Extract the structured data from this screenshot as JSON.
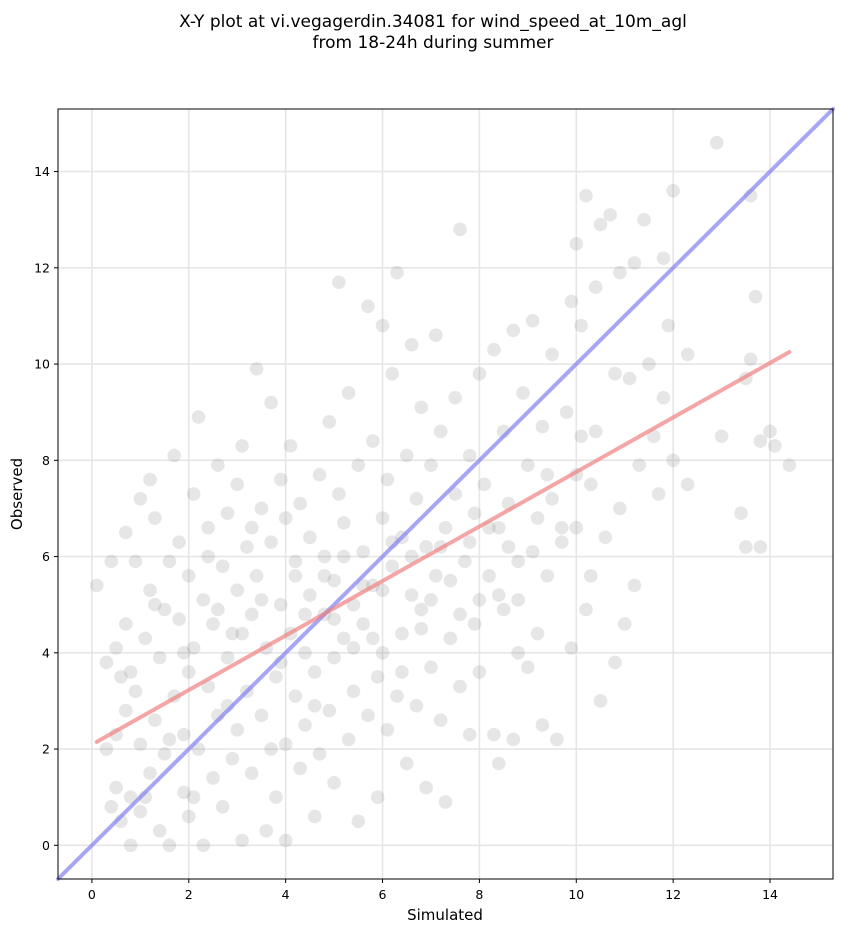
{
  "chart_data": {
    "type": "scatter",
    "title": [
      "X-Y plot at vi.vegagerdin.34081 for wind_speed_at_10m_agl",
      "from 18-24h during summer"
    ],
    "xlabel": "Simulated",
    "ylabel": "Observed",
    "xlim": [
      -0.7,
      15.3
    ],
    "ylim": [
      -0.7,
      15.3
    ],
    "xticks": [
      0,
      2,
      4,
      6,
      8,
      10,
      12,
      14
    ],
    "yticks": [
      0,
      2,
      4,
      6,
      8,
      10,
      12,
      14
    ],
    "xtick_labels": [
      "0",
      "2",
      "4",
      "6",
      "8",
      "10",
      "12",
      "14"
    ],
    "ytick_labels": [
      "0",
      "2",
      "4",
      "6",
      "8",
      "10",
      "12",
      "14"
    ],
    "grid": true,
    "point_color": "#808080",
    "identity_line": {
      "color": "#8080f0",
      "from": [
        -0.7,
        -0.7
      ],
      "to": [
        15.3,
        15.3
      ]
    },
    "regression_line": {
      "color": "#f08080",
      "from": [
        0.1,
        2.15
      ],
      "to": [
        14.4,
        10.25
      ]
    },
    "points": [
      [
        0.1,
        5.4
      ],
      [
        0.3,
        3.8
      ],
      [
        0.4,
        5.9
      ],
      [
        0.4,
        0.8
      ],
      [
        0.5,
        2.3
      ],
      [
        0.5,
        1.2
      ],
      [
        0.6,
        3.5
      ],
      [
        0.6,
        0.5
      ],
      [
        0.7,
        4.6
      ],
      [
        0.7,
        2.8
      ],
      [
        0.7,
        6.5
      ],
      [
        0.8,
        1.0
      ],
      [
        0.8,
        0.0
      ],
      [
        0.9,
        5.9
      ],
      [
        0.9,
        3.2
      ],
      [
        1.0,
        2.1
      ],
      [
        1.0,
        7.2
      ],
      [
        1.0,
        0.7
      ],
      [
        1.1,
        4.3
      ],
      [
        1.2,
        5.3
      ],
      [
        1.2,
        1.5
      ],
      [
        1.2,
        7.6
      ],
      [
        1.3,
        2.6
      ],
      [
        1.3,
        6.8
      ],
      [
        1.4,
        3.9
      ],
      [
        1.4,
        0.3
      ],
      [
        1.5,
        4.9
      ],
      [
        1.5,
        1.9
      ],
      [
        1.6,
        5.9
      ],
      [
        1.6,
        0.0
      ],
      [
        1.7,
        8.1
      ],
      [
        1.7,
        3.1
      ],
      [
        1.8,
        6.3
      ],
      [
        1.8,
        4.7
      ],
      [
        1.9,
        1.1
      ],
      [
        1.9,
        2.3
      ],
      [
        2.0,
        5.6
      ],
      [
        2.0,
        3.6
      ],
      [
        2.0,
        0.6
      ],
      [
        2.1,
        7.3
      ],
      [
        2.1,
        4.1
      ],
      [
        2.2,
        8.9
      ],
      [
        2.2,
        2.0
      ],
      [
        2.3,
        5.1
      ],
      [
        2.3,
        0.0
      ],
      [
        2.4,
        6.6
      ],
      [
        2.4,
        3.3
      ],
      [
        2.5,
        4.6
      ],
      [
        2.5,
        1.4
      ],
      [
        2.6,
        7.9
      ],
      [
        2.6,
        2.7
      ],
      [
        2.7,
        5.8
      ],
      [
        2.7,
        0.8
      ],
      [
        2.8,
        6.9
      ],
      [
        2.8,
        3.9
      ],
      [
        2.9,
        4.4
      ],
      [
        2.9,
        1.8
      ],
      [
        3.0,
        7.5
      ],
      [
        3.0,
        5.3
      ],
      [
        3.0,
        2.4
      ],
      [
        3.1,
        8.3
      ],
      [
        3.1,
        0.1
      ],
      [
        3.2,
        6.2
      ],
      [
        3.2,
        3.2
      ],
      [
        3.3,
        4.8
      ],
      [
        3.3,
        1.5
      ],
      [
        3.4,
        9.9
      ],
      [
        3.4,
        5.6
      ],
      [
        3.5,
        7.0
      ],
      [
        3.5,
        2.7
      ],
      [
        3.6,
        4.1
      ],
      [
        3.6,
        0.3
      ],
      [
        3.7,
        9.2
      ],
      [
        3.7,
        6.3
      ],
      [
        3.8,
        3.5
      ],
      [
        3.8,
        1.0
      ],
      [
        3.9,
        7.6
      ],
      [
        3.9,
        5.0
      ],
      [
        4.0,
        2.1
      ],
      [
        4.0,
        6.8
      ],
      [
        4.0,
        0.1
      ],
      [
        4.1,
        4.4
      ],
      [
        4.1,
        8.3
      ],
      [
        4.2,
        3.1
      ],
      [
        4.2,
        5.6
      ],
      [
        4.3,
        1.6
      ],
      [
        4.3,
        7.1
      ],
      [
        4.4,
        4.0
      ],
      [
        4.4,
        2.5
      ],
      [
        4.5,
        6.4
      ],
      [
        4.5,
        5.2
      ],
      [
        4.6,
        3.6
      ],
      [
        4.6,
        0.6
      ],
      [
        4.7,
        7.7
      ],
      [
        4.7,
        1.9
      ],
      [
        4.8,
        4.8
      ],
      [
        4.8,
        6.0
      ],
      [
        4.9,
        2.8
      ],
      [
        4.9,
        8.8
      ],
      [
        5.0,
        5.5
      ],
      [
        5.0,
        3.9
      ],
      [
        5.0,
        1.3
      ],
      [
        5.1,
        7.3
      ],
      [
        5.1,
        11.7
      ],
      [
        5.2,
        4.3
      ],
      [
        5.2,
        6.7
      ],
      [
        5.3,
        2.2
      ],
      [
        5.3,
        9.4
      ],
      [
        5.4,
        5.0
      ],
      [
        5.4,
        3.2
      ],
      [
        5.5,
        7.9
      ],
      [
        5.5,
        0.5
      ],
      [
        5.6,
        6.1
      ],
      [
        5.6,
        4.6
      ],
      [
        5.7,
        2.7
      ],
      [
        5.7,
        11.2
      ],
      [
        5.8,
        8.4
      ],
      [
        5.8,
        5.4
      ],
      [
        5.9,
        3.5
      ],
      [
        5.9,
        1.0
      ],
      [
        6.0,
        10.8
      ],
      [
        6.0,
        6.8
      ],
      [
        6.0,
        4.0
      ],
      [
        6.1,
        7.6
      ],
      [
        6.1,
        2.4
      ],
      [
        6.2,
        5.8
      ],
      [
        6.2,
        9.8
      ],
      [
        6.3,
        3.1
      ],
      [
        6.3,
        11.9
      ],
      [
        6.4,
        6.4
      ],
      [
        6.4,
        4.4
      ],
      [
        6.5,
        8.1
      ],
      [
        6.5,
        1.7
      ],
      [
        6.6,
        5.2
      ],
      [
        6.6,
        10.4
      ],
      [
        6.7,
        7.2
      ],
      [
        6.7,
        2.9
      ],
      [
        6.8,
        9.1
      ],
      [
        6.8,
        4.9
      ],
      [
        6.9,
        6.2
      ],
      [
        6.9,
        1.2
      ],
      [
        7.0,
        7.9
      ],
      [
        7.0,
        3.7
      ],
      [
        7.1,
        10.6
      ],
      [
        7.1,
        5.6
      ],
      [
        7.2,
        8.6
      ],
      [
        7.2,
        2.6
      ],
      [
        7.3,
        0.9
      ],
      [
        7.3,
        6.6
      ],
      [
        7.4,
        4.3
      ],
      [
        7.5,
        9.3
      ],
      [
        7.5,
        7.3
      ],
      [
        7.6,
        12.8
      ],
      [
        7.6,
        3.3
      ],
      [
        7.7,
        5.9
      ],
      [
        7.8,
        2.3
      ],
      [
        7.8,
        8.1
      ],
      [
        7.9,
        6.9
      ],
      [
        7.9,
        4.6
      ],
      [
        8.0,
        9.8
      ],
      [
        8.0,
        3.6
      ],
      [
        8.1,
        7.5
      ],
      [
        8.2,
        5.6
      ],
      [
        8.3,
        2.3
      ],
      [
        8.3,
        10.3
      ],
      [
        8.4,
        6.6
      ],
      [
        8.4,
        1.7
      ],
      [
        8.5,
        4.9
      ],
      [
        8.5,
        8.6
      ],
      [
        8.6,
        7.1
      ],
      [
        8.7,
        2.2
      ],
      [
        8.7,
        10.7
      ],
      [
        8.8,
        4.0
      ],
      [
        8.8,
        5.9
      ],
      [
        8.9,
        9.4
      ],
      [
        9.0,
        3.7
      ],
      [
        9.0,
        7.9
      ],
      [
        9.1,
        10.9
      ],
      [
        9.1,
        6.1
      ],
      [
        9.2,
        4.4
      ],
      [
        9.3,
        2.5
      ],
      [
        9.3,
        8.7
      ],
      [
        9.4,
        5.6
      ],
      [
        9.5,
        10.2
      ],
      [
        9.5,
        7.2
      ],
      [
        9.6,
        2.2
      ],
      [
        9.7,
        6.3
      ],
      [
        9.8,
        9.0
      ],
      [
        9.9,
        11.3
      ],
      [
        9.9,
        4.1
      ],
      [
        10.0,
        12.5
      ],
      [
        10.0,
        7.7
      ],
      [
        10.1,
        8.5
      ],
      [
        10.1,
        10.8
      ],
      [
        10.2,
        13.5
      ],
      [
        10.2,
        4.9
      ],
      [
        10.3,
        5.6
      ],
      [
        10.4,
        11.6
      ],
      [
        10.4,
        8.6
      ],
      [
        10.5,
        3.0
      ],
      [
        10.5,
        12.9
      ],
      [
        10.6,
        6.4
      ],
      [
        10.7,
        13.1
      ],
      [
        10.8,
        9.8
      ],
      [
        10.8,
        3.8
      ],
      [
        10.9,
        7.0
      ],
      [
        10.9,
        11.9
      ],
      [
        11.0,
        4.6
      ],
      [
        11.1,
        9.7
      ],
      [
        11.2,
        12.1
      ],
      [
        11.2,
        5.4
      ],
      [
        11.3,
        7.9
      ],
      [
        11.4,
        13.0
      ],
      [
        11.5,
        10.0
      ],
      [
        11.6,
        8.5
      ],
      [
        11.7,
        7.3
      ],
      [
        11.8,
        12.2
      ],
      [
        11.8,
        9.3
      ],
      [
        11.9,
        10.8
      ],
      [
        12.0,
        13.6
      ],
      [
        12.0,
        8.0
      ],
      [
        12.3,
        7.5
      ],
      [
        12.3,
        10.2
      ],
      [
        12.9,
        14.6
      ],
      [
        13.0,
        8.5
      ],
      [
        13.4,
        6.9
      ],
      [
        13.5,
        6.2
      ],
      [
        13.5,
        9.7
      ],
      [
        13.6,
        10.1
      ],
      [
        13.6,
        13.5
      ],
      [
        13.7,
        11.4
      ],
      [
        13.8,
        6.2
      ],
      [
        13.8,
        8.4
      ],
      [
        14.0,
        8.6
      ],
      [
        14.1,
        8.3
      ],
      [
        14.4,
        7.9
      ],
      [
        0.3,
        2.0
      ],
      [
        0.5,
        4.1
      ],
      [
        0.8,
        3.6
      ],
      [
        1.1,
        1.0
      ],
      [
        1.3,
        5.0
      ],
      [
        1.6,
        2.2
      ],
      [
        1.9,
        4.0
      ],
      [
        2.1,
        1.0
      ],
      [
        2.4,
        6.0
      ],
      [
        2.6,
        4.9
      ],
      [
        2.8,
        2.9
      ],
      [
        3.1,
        4.4
      ],
      [
        3.3,
        6.6
      ],
      [
        3.5,
        5.1
      ],
      [
        3.7,
        2.0
      ],
      [
        3.9,
        3.8
      ],
      [
        4.2,
        5.9
      ],
      [
        4.4,
        4.8
      ],
      [
        4.6,
        2.9
      ],
      [
        4.8,
        5.6
      ],
      [
        5.0,
        4.7
      ],
      [
        5.2,
        6.0
      ],
      [
        5.4,
        4.1
      ],
      [
        5.6,
        5.4
      ],
      [
        5.8,
        4.3
      ],
      [
        6.0,
        5.3
      ],
      [
        6.2,
        6.3
      ],
      [
        6.4,
        3.6
      ],
      [
        6.6,
        6.0
      ],
      [
        6.8,
        4.5
      ],
      [
        7.0,
        5.1
      ],
      [
        7.2,
        6.2
      ],
      [
        7.4,
        5.5
      ],
      [
        7.6,
        4.8
      ],
      [
        7.8,
        6.3
      ],
      [
        8.0,
        5.1
      ],
      [
        8.2,
        6.6
      ],
      [
        8.4,
        5.2
      ],
      [
        8.6,
        6.2
      ],
      [
        8.8,
        5.1
      ],
      [
        9.2,
        6.8
      ],
      [
        9.4,
        7.7
      ],
      [
        9.7,
        6.6
      ],
      [
        10.0,
        6.6
      ],
      [
        10.3,
        7.5
      ]
    ]
  }
}
